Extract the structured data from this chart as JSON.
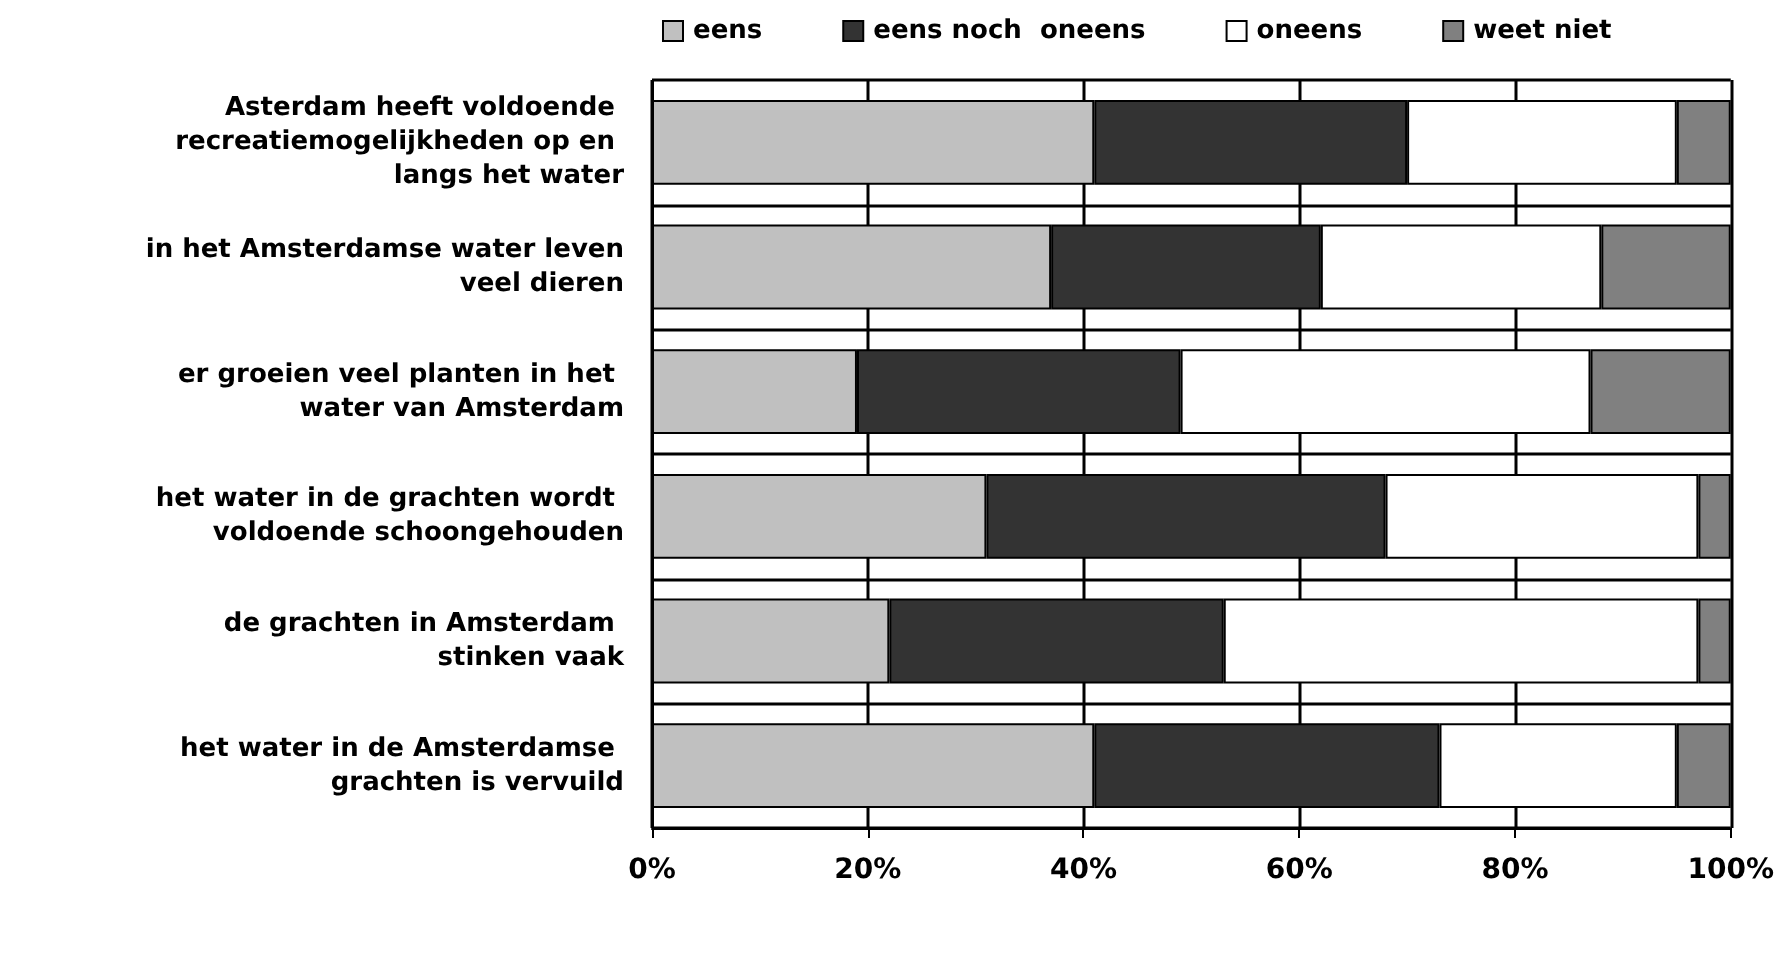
{
  "chart_data": {
    "type": "bar",
    "orientation": "horizontal",
    "stacked": true,
    "categories": [
      "Asterdam heeft voldoende recreatiemogelijkheden op en langs het water",
      "in het Amsterdamse water leven veel dieren",
      "er groeien veel planten in het water van Amsterdam",
      "het water in de grachten wordt voldoende schoongehouden",
      "de grachten in Amsterdam stinken vaak",
      "het water in de Amsterdamse grachten is vervuild"
    ],
    "series": [
      {
        "name": "eens",
        "color": "#c0c0c0",
        "values": [
          41,
          37,
          19,
          31,
          22,
          41
        ]
      },
      {
        "name": "eens noch  oneens",
        "color": "#333333",
        "values": [
          29,
          25,
          30,
          37,
          31,
          32
        ]
      },
      {
        "name": "oneens",
        "color": "#ffffff",
        "values": [
          25,
          26,
          38,
          29,
          44,
          22
        ]
      },
      {
        "name": "weet niet",
        "color": "#808080",
        "values": [
          5,
          12,
          13,
          3,
          3,
          5
        ]
      }
    ],
    "xlim": [
      0,
      100
    ],
    "xticks": [
      {
        "value": 0,
        "label": "0%"
      },
      {
        "value": 20,
        "label": "20%"
      },
      {
        "value": 40,
        "label": "40%"
      },
      {
        "value": 60,
        "label": "60%"
      },
      {
        "value": 80,
        "label": "80%"
      },
      {
        "value": 100,
        "label": "100%"
      }
    ],
    "grid": true,
    "legend": "top"
  }
}
